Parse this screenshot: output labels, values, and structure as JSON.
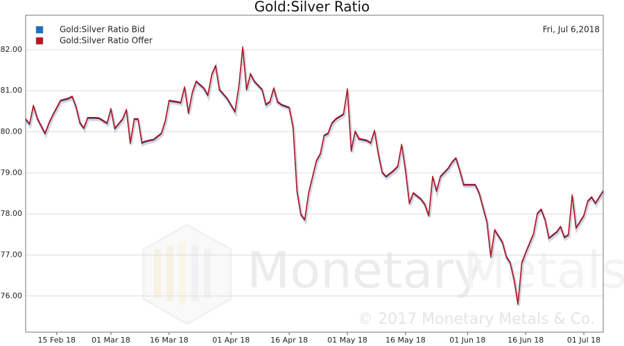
{
  "chart_data": {
    "type": "line",
    "title": "Gold:Silver Ratio",
    "date_label": "Fri, Jul 6,2018",
    "watermark": {
      "brand": "Monetary",
      "brand_light": "Metals",
      "copyright": "© 2017 Monetary Metals & Co."
    },
    "x": [
      "2018-02-07",
      "2018-02-08",
      "2018-02-09",
      "2018-02-10",
      "2018-02-12",
      "2018-02-13",
      "2018-02-14",
      "2018-02-16",
      "2018-02-18",
      "2018-02-19",
      "2018-02-20",
      "2018-02-21",
      "2018-02-22",
      "2018-02-23",
      "2018-02-25",
      "2018-02-26",
      "2018-02-28",
      "2018-03-01",
      "2018-03-02",
      "2018-03-04",
      "2018-03-05",
      "2018-03-06",
      "2018-03-07",
      "2018-03-08",
      "2018-03-09",
      "2018-03-10",
      "2018-03-12",
      "2018-03-14",
      "2018-03-15",
      "2018-03-16",
      "2018-03-18",
      "2018-03-19",
      "2018-03-20",
      "2018-03-21",
      "2018-03-22",
      "2018-03-23",
      "2018-03-25",
      "2018-03-26",
      "2018-03-27",
      "2018-03-28",
      "2018-03-29",
      "2018-03-31",
      "2018-04-02",
      "2018-04-03",
      "2018-04-04",
      "2018-04-05",
      "2018-04-06",
      "2018-04-07",
      "2018-04-09",
      "2018-04-10",
      "2018-04-11",
      "2018-04-12",
      "2018-04-13",
      "2018-04-14",
      "2018-04-16",
      "2018-04-17",
      "2018-04-18",
      "2018-04-19",
      "2018-04-20",
      "2018-04-21",
      "2018-04-23",
      "2018-04-24",
      "2018-04-25",
      "2018-04-26",
      "2018-04-27",
      "2018-04-28",
      "2018-04-30",
      "2018-05-01",
      "2018-05-02",
      "2018-05-03",
      "2018-05-04",
      "2018-05-06",
      "2018-05-07",
      "2018-05-08",
      "2018-05-09",
      "2018-05-10",
      "2018-05-11",
      "2018-05-13",
      "2018-05-14",
      "2018-05-15",
      "2018-05-16",
      "2018-05-17",
      "2018-05-18",
      "2018-05-20",
      "2018-05-21",
      "2018-05-22",
      "2018-05-23",
      "2018-05-24",
      "2018-05-25",
      "2018-05-27",
      "2018-05-28",
      "2018-05-29",
      "2018-05-30",
      "2018-05-31",
      "2018-06-01",
      "2018-06-03",
      "2018-06-04",
      "2018-06-06",
      "2018-06-07",
      "2018-06-08",
      "2018-06-10",
      "2018-06-11",
      "2018-06-12",
      "2018-06-13",
      "2018-06-14",
      "2018-06-15",
      "2018-06-16",
      "2018-06-18",
      "2018-06-19",
      "2018-06-20",
      "2018-06-21",
      "2018-06-22",
      "2018-06-24",
      "2018-06-25",
      "2018-06-26",
      "2018-06-27",
      "2018-06-28",
      "2018-06-29",
      "2018-07-01",
      "2018-07-02",
      "2018-07-03",
      "2018-07-04",
      "2018-07-05",
      "2018-07-06"
    ],
    "series": [
      {
        "name": "Gold:Silver Ratio Bid",
        "color": "#1a6fc4",
        "line_color": "#1f2a6b",
        "values": [
          80.3,
          80.18,
          80.63,
          80.32,
          79.95,
          80.2,
          80.4,
          80.75,
          80.8,
          80.85,
          80.6,
          80.21,
          80.08,
          80.33,
          80.33,
          80.32,
          80.2,
          80.55,
          80.07,
          80.3,
          80.53,
          79.72,
          80.3,
          80.3,
          79.72,
          79.76,
          79.8,
          79.95,
          80.25,
          80.75,
          80.72,
          80.7,
          81.08,
          80.45,
          80.95,
          81.22,
          81.05,
          80.88,
          81.38,
          81.6,
          81.02,
          80.8,
          80.48,
          81.1,
          82.05,
          81.02,
          81.4,
          81.22,
          81.02,
          80.65,
          80.72,
          81.05,
          80.72,
          80.65,
          80.58,
          80.1,
          78.55,
          77.98,
          77.85,
          78.5,
          79.28,
          79.45,
          79.9,
          79.95,
          80.2,
          80.3,
          80.42,
          81.03,
          79.53,
          80.0,
          79.82,
          79.78,
          79.72,
          80.02,
          79.45,
          79.0,
          78.9,
          79.05,
          79.15,
          79.68,
          79.05,
          78.25,
          78.5,
          78.35,
          78.22,
          77.95,
          78.9,
          78.55,
          78.9,
          79.1,
          79.25,
          79.35,
          79.05,
          78.7,
          78.7,
          78.7,
          78.5,
          77.8,
          76.95,
          77.6,
          77.3,
          76.95,
          76.8,
          76.4,
          75.8,
          76.8,
          77.05,
          77.5,
          78.0,
          78.1,
          77.85,
          77.4,
          77.55,
          77.68,
          77.42,
          77.48,
          78.45,
          77.65,
          77.95,
          78.3,
          78.4,
          78.25,
          78.4,
          78.55
        ]
      },
      {
        "name": "Gold:Silver Ratio Offer",
        "color": "#c0121c",
        "line_color": "#c0121c",
        "values": [
          80.32,
          80.2,
          80.65,
          80.34,
          79.97,
          80.22,
          80.42,
          80.77,
          80.82,
          80.87,
          80.62,
          80.23,
          80.1,
          80.35,
          80.35,
          80.34,
          80.22,
          80.57,
          80.09,
          80.32,
          80.55,
          79.74,
          80.32,
          80.32,
          79.74,
          79.78,
          79.82,
          79.97,
          80.27,
          80.77,
          80.74,
          80.72,
          81.1,
          80.47,
          80.97,
          81.24,
          81.07,
          80.9,
          81.4,
          81.62,
          81.04,
          80.82,
          80.5,
          81.12,
          82.07,
          81.04,
          81.42,
          81.24,
          81.04,
          80.67,
          80.74,
          81.07,
          80.74,
          80.67,
          80.6,
          80.12,
          78.57,
          78.0,
          77.87,
          78.52,
          79.3,
          79.47,
          79.92,
          79.97,
          80.22,
          80.32,
          80.44,
          81.05,
          79.55,
          80.02,
          79.84,
          79.8,
          79.74,
          80.04,
          79.47,
          79.02,
          78.92,
          79.07,
          79.17,
          79.7,
          79.07,
          78.27,
          78.52,
          78.37,
          78.24,
          77.97,
          78.92,
          78.57,
          78.92,
          79.12,
          79.27,
          79.37,
          79.07,
          78.72,
          78.72,
          78.72,
          78.52,
          77.82,
          76.97,
          77.62,
          77.32,
          76.97,
          76.82,
          76.42,
          75.82,
          76.82,
          77.07,
          77.52,
          78.02,
          78.12,
          77.87,
          77.42,
          77.57,
          77.7,
          77.44,
          77.5,
          78.47,
          77.67,
          77.97,
          78.32,
          78.42,
          78.27,
          78.42,
          78.57
        ]
      }
    ],
    "xlim": [
      "2018-02-07",
      "2018-07-06"
    ],
    "xticks": [
      {
        "value": "2018-02-15",
        "label": "15 Feb 18"
      },
      {
        "value": "2018-03-01",
        "label": "01 Mar 18"
      },
      {
        "value": "2018-03-16",
        "label": "16 Mar 18"
      },
      {
        "value": "2018-04-01",
        "label": "01 Apr 18"
      },
      {
        "value": "2018-04-16",
        "label": "16 Apr 18"
      },
      {
        "value": "2018-05-01",
        "label": "01 May 18"
      },
      {
        "value": "2018-05-16",
        "label": "16 May 18"
      },
      {
        "value": "2018-06-01",
        "label": "01 Jun 18"
      },
      {
        "value": "2018-06-16",
        "label": "16 Jun 18"
      },
      {
        "value": "2018-07-01",
        "label": "01 Jul 18"
      }
    ],
    "ylim": [
      75.12,
      82.84
    ],
    "yticks": [
      {
        "value": 76,
        "label": "76.00"
      },
      {
        "value": 77,
        "label": "77.00"
      },
      {
        "value": 78,
        "label": "78.00"
      },
      {
        "value": 79,
        "label": "79.00"
      },
      {
        "value": 80,
        "label": "80.00"
      },
      {
        "value": 81,
        "label": "81.00"
      },
      {
        "value": 82,
        "label": "82.00"
      }
    ],
    "grid": true,
    "legend": "top-left"
  }
}
